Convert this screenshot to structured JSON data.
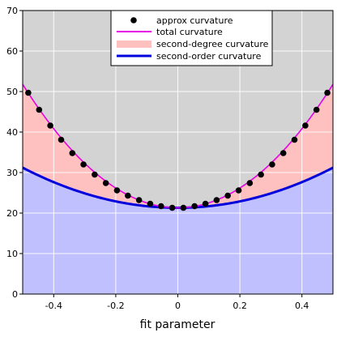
{
  "chart_data": {
    "type": "line",
    "xlabel": "fit parameter",
    "ylabel": "",
    "xlim": [
      -0.5,
      0.5
    ],
    "ylim": [
      0,
      70
    ],
    "xticks": [
      -0.4,
      -0.2,
      0,
      0.2,
      0.4
    ],
    "xtick_labels": [
      "-0.4",
      "-0.2",
      "0",
      "0.2",
      "0.4"
    ],
    "yticks": [
      0,
      10,
      20,
      30,
      40,
      50,
      60,
      70
    ],
    "ytick_labels": [
      "0",
      "10",
      "20",
      "30",
      "40",
      "50",
      "60",
      "70"
    ],
    "grid": true,
    "legend_position": "top-center",
    "colors": {
      "plot_background": "#d3d3d3",
      "second_degree_fill": "#ffc0c0",
      "second_order_fill": "#c0c0ff",
      "total_curvature_line": "#e600e6",
      "second_order_line": "#0000dd",
      "approx_points": "#000000",
      "grid": "#ffffff"
    },
    "curves": {
      "total_curvature": {
        "min": 21.3,
        "quadratic_coefficient": 122
      },
      "second_order_curvature": {
        "min": 21.3,
        "quadratic_coefficient": 39.6
      }
    },
    "series": [
      {
        "name": "approx curvature",
        "kind": "points",
        "x": [
          -0.482,
          -0.447,
          -0.411,
          -0.376,
          -0.34,
          -0.304,
          -0.268,
          -0.232,
          -0.196,
          -0.161,
          -0.125,
          -0.089,
          -0.054,
          -0.018,
          0.018,
          0.054,
          0.089,
          0.125,
          0.161,
          0.196,
          0.232,
          0.268,
          0.304,
          0.34,
          0.376,
          0.411,
          0.447,
          0.482
        ],
        "y": [
          49.7,
          45.5,
          41.6,
          38.1,
          34.8,
          32.0,
          29.5,
          27.4,
          25.6,
          24.3,
          23.2,
          22.3,
          21.7,
          21.3,
          21.3,
          21.7,
          22.3,
          23.2,
          24.3,
          25.6,
          27.4,
          29.5,
          32.0,
          34.8,
          38.1,
          41.6,
          45.5,
          49.7
        ]
      },
      {
        "name": "total curvature",
        "kind": "line"
      },
      {
        "name": "second-degree curvature",
        "kind": "fill"
      },
      {
        "name": "second-order curvature",
        "kind": "line"
      }
    ]
  }
}
